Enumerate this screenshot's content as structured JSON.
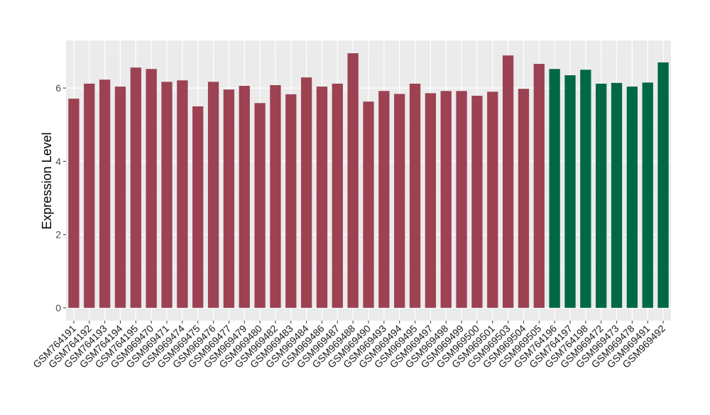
{
  "chart_data": {
    "type": "bar",
    "title": "",
    "xlabel": "",
    "ylabel": "Expression Level",
    "ylim": [
      -0.35,
      7.3
    ],
    "yticks": [
      0,
      2,
      4,
      6
    ],
    "grid": true,
    "legend": "none",
    "colors": {
      "group1": "#9C4252",
      "group2": "#006847"
    },
    "categories": [
      "GSM764191",
      "GSM764192",
      "GSM764193",
      "GSM764194",
      "GSM764195",
      "GSM969470",
      "GSM969471",
      "GSM969474",
      "GSM969475",
      "GSM969476",
      "GSM969477",
      "GSM969479",
      "GSM969480",
      "GSM969482",
      "GSM969483",
      "GSM969484",
      "GSM969486",
      "GSM969487",
      "GSM969488",
      "GSM969490",
      "GSM969493",
      "GSM969494",
      "GSM969495",
      "GSM969497",
      "GSM969498",
      "GSM969499",
      "GSM969500",
      "GSM969501",
      "GSM969503",
      "GSM969504",
      "GSM969505",
      "GSM764196",
      "GSM764197",
      "GSM764198",
      "GSM969472",
      "GSM969473",
      "GSM969478",
      "GSM969491",
      "GSM969492"
    ],
    "values": [
      5.71,
      6.12,
      6.23,
      6.04,
      6.56,
      6.52,
      6.17,
      6.21,
      5.5,
      6.17,
      5.96,
      6.06,
      5.59,
      6.08,
      5.83,
      6.29,
      6.04,
      6.12,
      6.95,
      5.63,
      5.92,
      5.84,
      6.12,
      5.86,
      5.92,
      5.92,
      5.79,
      5.9,
      6.89,
      5.98,
      6.66,
      6.52,
      6.35,
      6.5,
      6.12,
      6.14,
      6.04,
      6.15,
      6.7
    ],
    "groups": [
      "group1",
      "group1",
      "group1",
      "group1",
      "group1",
      "group1",
      "group1",
      "group1",
      "group1",
      "group1",
      "group1",
      "group1",
      "group1",
      "group1",
      "group1",
      "group1",
      "group1",
      "group1",
      "group1",
      "group1",
      "group1",
      "group1",
      "group1",
      "group1",
      "group1",
      "group1",
      "group1",
      "group1",
      "group1",
      "group1",
      "group1",
      "group2",
      "group2",
      "group2",
      "group2",
      "group2",
      "group2",
      "group2",
      "group2"
    ]
  }
}
